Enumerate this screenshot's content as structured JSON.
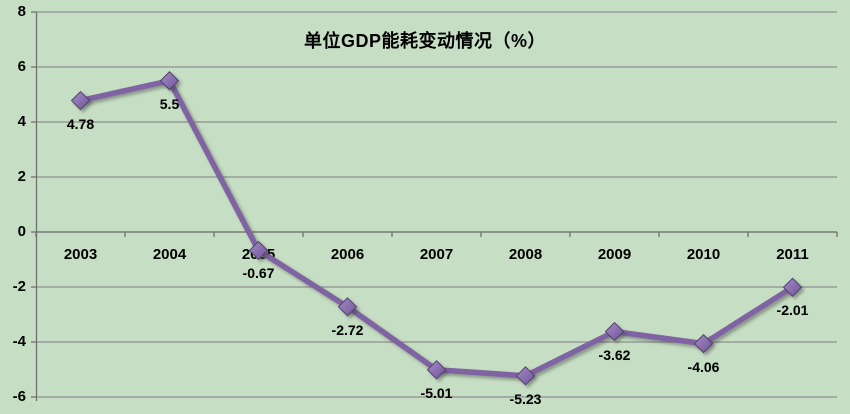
{
  "title": "单位GDP能耗变动情况（%）",
  "colors": {
    "background": "#c6dfc4",
    "line": "#8064a2",
    "marker_fill_light": "#a58cc4",
    "marker_fill_dark": "#6f549a",
    "marker_border": "#53406e",
    "gridline": "#8f8f8f",
    "axis": "#707070",
    "text": "#000000"
  },
  "y_axis": {
    "tick_labels": [
      "8",
      "6",
      "4",
      "2",
      "0",
      "-2",
      "-4",
      "-6"
    ],
    "max": 8,
    "min": -6,
    "step": 2
  },
  "chart_data": {
    "type": "line",
    "title": "单位GDP能耗变动情况（%）",
    "categories": [
      "2003",
      "2004",
      "2005",
      "2006",
      "2007",
      "2008",
      "2009",
      "2010",
      "2011"
    ],
    "values": [
      4.78,
      5.5,
      -0.67,
      -2.72,
      -5.01,
      -5.23,
      -3.62,
      -4.06,
      -2.01
    ],
    "data_labels": [
      "4.78",
      "5.5",
      "-0.67",
      "-2.72",
      "-5.01",
      "-5.23",
      "-3.62",
      "-4.06",
      "-2.01"
    ],
    "xlabel": "",
    "ylabel": "",
    "ylim": [
      -6,
      8
    ],
    "grid": true,
    "legend": false,
    "marker": "diamond",
    "data_label_position": "below"
  }
}
